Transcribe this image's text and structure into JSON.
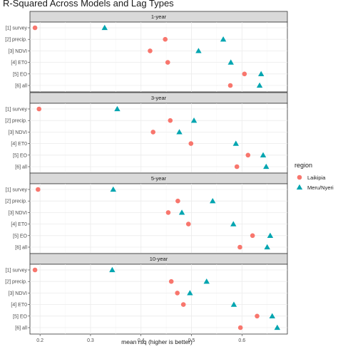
{
  "chart_data": {
    "type": "scatter",
    "title": "R-Squared Across Models and Lag Types",
    "xlabel": "mean rsq (higher is better)",
    "ylabel": "",
    "xlim": [
      0.18,
      0.69
    ],
    "x_ticks": [
      0.2,
      0.3,
      0.4,
      0.5,
      0.6
    ],
    "x_tick_labels": [
      "0.2",
      "0.3",
      "0.4",
      "0.5",
      "0.6"
    ],
    "grid": true,
    "legend_position": "right",
    "categories": [
      "[1] survey",
      "[2] precip.",
      "[3] NDVI",
      "[4] ET0",
      "[5] EO",
      "[6] all"
    ],
    "legend": {
      "title": "region",
      "entries": [
        {
          "name": "Laikipia",
          "color": "#F8766D",
          "shape": "circle"
        },
        {
          "name": "Meru/Nyeri",
          "color": "#00A5B0",
          "shape": "triangle"
        }
      ]
    },
    "panels": [
      {
        "label": "1-year",
        "series": [
          {
            "name": "Laikipia",
            "values": [
              0.19,
              0.448,
              0.418,
              0.453,
              0.605,
              0.577
            ]
          },
          {
            "name": "Meru/Nyeri",
            "values": [
              0.328,
              0.563,
              0.514,
              0.578,
              0.638,
              0.635
            ]
          }
        ]
      },
      {
        "label": "3-year",
        "series": [
          {
            "name": "Laikipia",
            "values": [
              0.198,
              0.458,
              0.424,
              0.499,
              0.612,
              0.59
            ]
          },
          {
            "name": "Meru/Nyeri",
            "values": [
              0.353,
              0.505,
              0.476,
              0.588,
              0.642,
              0.648
            ]
          }
        ]
      },
      {
        "label": "5-year",
        "series": [
          {
            "name": "Laikipia",
            "values": [
              0.196,
              0.473,
              0.454,
              0.494,
              0.621,
              0.596
            ]
          },
          {
            "name": "Meru/Nyeri",
            "values": [
              0.345,
              0.542,
              0.481,
              0.583,
              0.656,
              0.65
            ]
          }
        ]
      },
      {
        "label": "10-year",
        "series": [
          {
            "name": "Laikipia",
            "values": [
              0.19,
              0.46,
              0.472,
              0.484,
              0.63,
              0.597
            ]
          },
          {
            "name": "Meru/Nyeri",
            "values": [
              0.343,
              0.53,
              0.497,
              0.584,
              0.66,
              0.67
            ]
          }
        ]
      }
    ]
  }
}
